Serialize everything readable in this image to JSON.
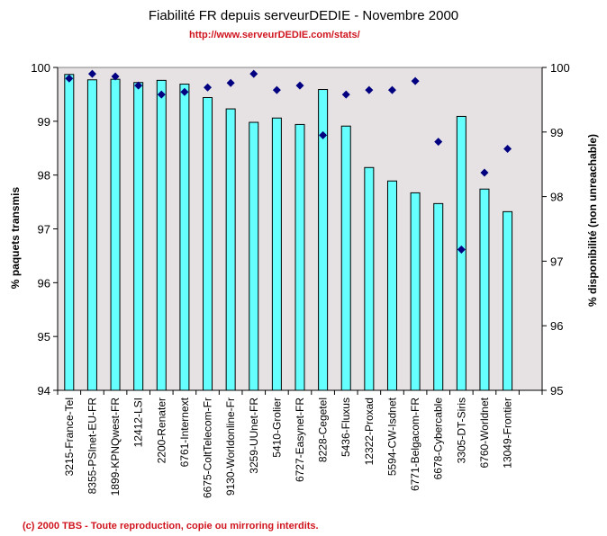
{
  "chart_data": {
    "type": "bar",
    "title": "Fiabilité FR depuis serveurDEDIE - Novembre 2000",
    "subtitle": "http://www.serveurDEDIE.com/stats/",
    "footer": "(c) 2000 TBS - Toute reproduction, copie ou mirroring interdits.",
    "xlabel": "",
    "ylabel": "% paquets transmis",
    "y2label": "% disponibilité (non unreachable)",
    "ylim": [
      94,
      100
    ],
    "y2lim": [
      95,
      100
    ],
    "yticks": [
      "94",
      "95",
      "96",
      "97",
      "98",
      "99",
      "100"
    ],
    "y2ticks": [
      "95",
      "96",
      "97",
      "98",
      "99",
      "100"
    ],
    "grid": false,
    "colors": {
      "bar_fill": "#66FFFF",
      "bar_stroke": "#000000",
      "marker": "#000080",
      "plot_bg": "#E6E2E4",
      "accent_red": "#D0141E"
    },
    "categories": [
      "3215-France-Tel",
      "8355-PSInet-EU-FR",
      "1899-KPNQwest-FR",
      "12412-LSI",
      "2200-Renater",
      "6761-Internext",
      "6675-ColtTelecom-Fr",
      "9130-Worldonline-Fr",
      "3259-UUnet-FR",
      "5410-Grolier",
      "6727-Easynet-FR",
      "8228-Cegetel",
      "5436-Fluxus",
      "12322-Proxad",
      "5594-CW-Isdnet",
      "6771-Belgacom-FR",
      "6678-Cybercable",
      "3305-DT-Siris",
      "6760-Worldnet",
      "13049-Frontier",
      ""
    ],
    "series": [
      {
        "name": "% paquets transmis",
        "type": "bar",
        "axis": "left",
        "values": [
          99.87,
          99.77,
          99.78,
          99.72,
          99.76,
          99.69,
          99.44,
          99.23,
          98.98,
          99.06,
          98.94,
          99.59,
          98.91,
          98.14,
          97.89,
          97.67,
          97.47,
          99.09,
          97.74,
          97.32,
          null
        ]
      },
      {
        "name": "% disponibilité (non unreachable)",
        "type": "scatter",
        "axis": "right",
        "marker": "diamond",
        "values": [
          99.83,
          99.9,
          99.86,
          99.72,
          99.58,
          99.62,
          99.69,
          99.76,
          99.9,
          99.65,
          99.72,
          98.95,
          99.58,
          99.65,
          99.65,
          99.79,
          98.85,
          97.18,
          98.37,
          98.74,
          null
        ]
      }
    ]
  }
}
